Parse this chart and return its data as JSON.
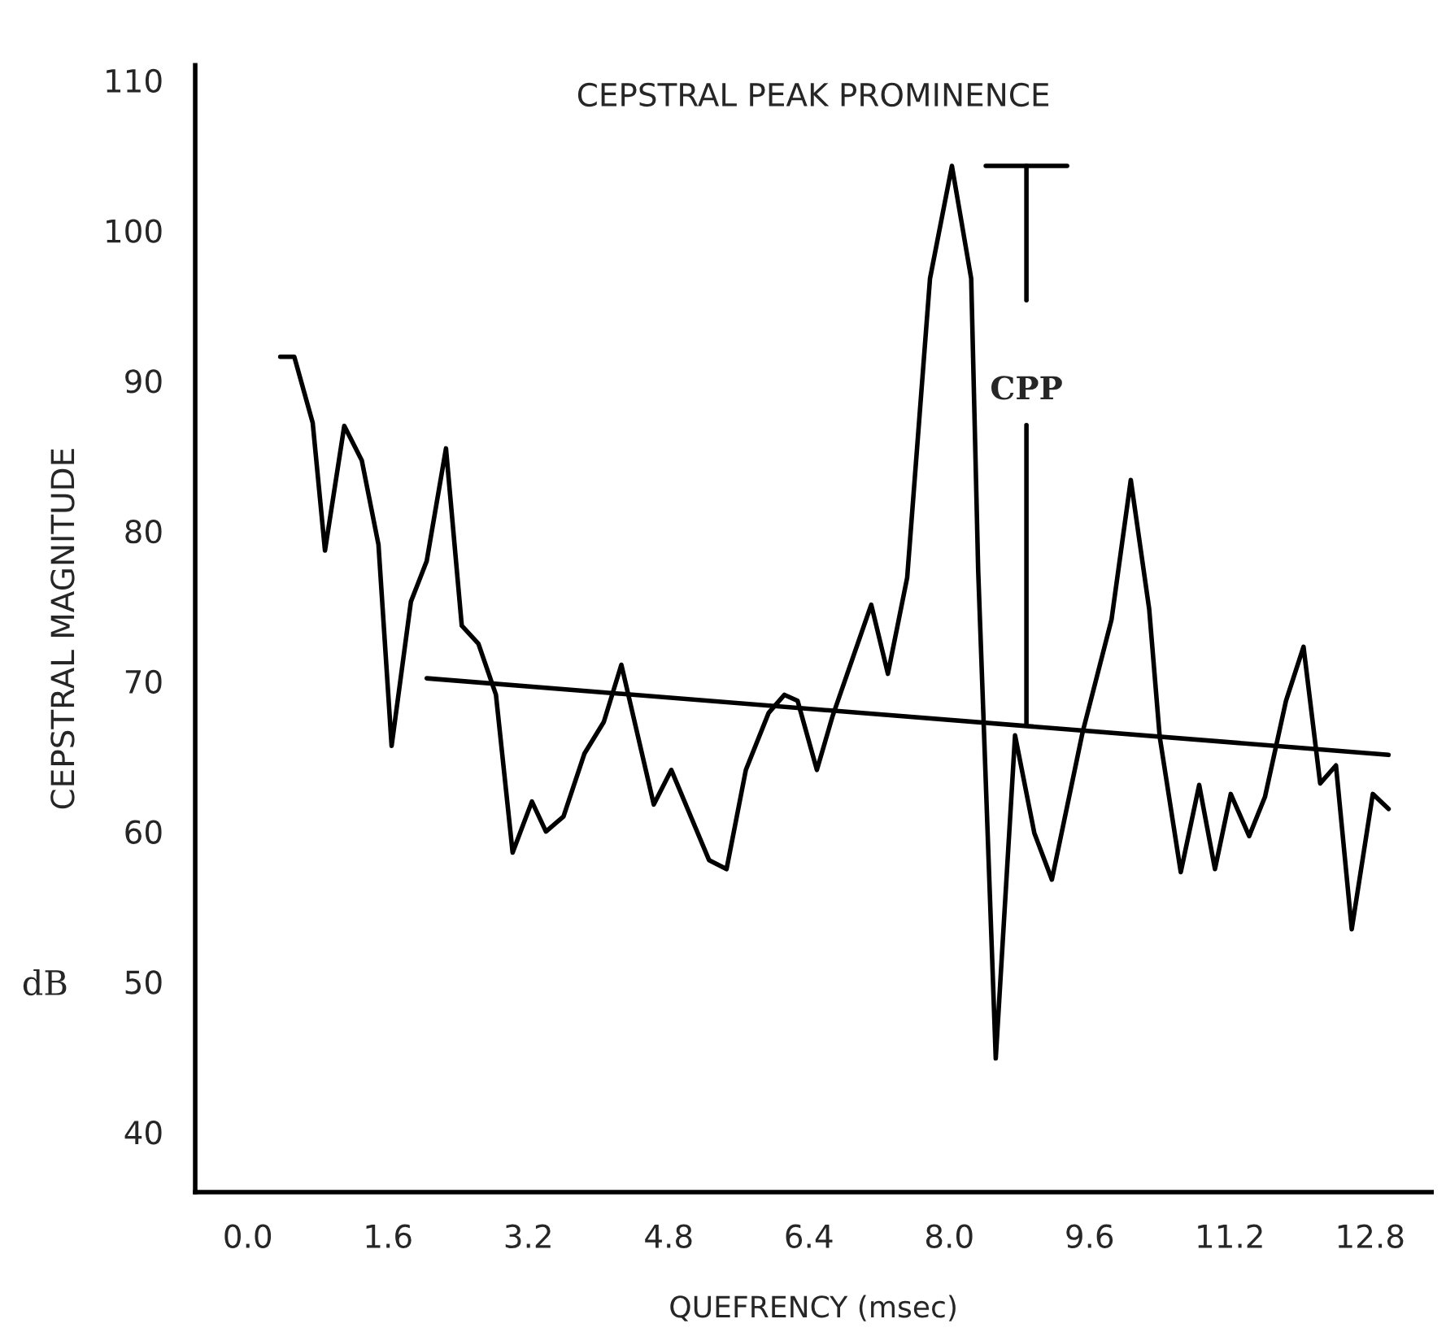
{
  "chart_data": {
    "type": "line",
    "title": "CEPSTRAL PEAK PROMINENCE",
    "xlabel": "QUEFRENCY (msec)",
    "ylabel": "CEPSTRAL MAGNITUDE",
    "xlim": [
      -0.6,
      13.5
    ],
    "ylim": [
      36,
      111
    ],
    "xticks": [
      {
        "value": 0,
        "label": "0.0"
      },
      1.6,
      3.2,
      4.8,
      6.4,
      {
        "value": 8,
        "label": "8.0"
      },
      9.6,
      11.2,
      12.8
    ],
    "yticks": [
      40,
      50,
      60,
      70,
      80,
      90,
      100,
      110
    ],
    "grid": false,
    "legend": false,
    "marker": "none",
    "line_style": "solid",
    "series": [
      {
        "color": "#000000",
        "x": [
          0.37,
          0.53,
          0.74,
          0.88,
          1.1,
          1.3,
          1.49,
          1.64,
          1.86,
          2.04,
          2.26,
          2.44,
          2.63,
          2.83,
          3.02,
          3.24,
          3.4,
          3.6,
          3.84,
          4.06,
          4.26,
          4.63,
          4.83,
          5.26,
          5.46,
          5.68,
          5.94,
          6.12,
          6.27,
          6.49,
          6.67,
          7.11,
          7.3,
          7.52,
          7.78,
          8.03,
          8.25,
          8.33,
          8.53,
          8.75,
          8.97,
          9.17,
          9.52,
          9.85,
          10.07,
          10.28,
          10.4,
          10.64,
          10.85,
          11.03,
          11.21,
          11.42,
          11.6,
          11.84,
          12.04,
          12.23,
          12.41,
          12.59,
          12.83,
          13.01
        ],
        "values": [
          91.6,
          91.6,
          87.2,
          78.7,
          87.0,
          84.7,
          79.1,
          65.7,
          75.3,
          78.0,
          85.5,
          73.7,
          72.5,
          69.1,
          58.6,
          62.0,
          60.0,
          61.0,
          65.2,
          67.3,
          71.1,
          61.8,
          64.1,
          58.1,
          57.5,
          64.1,
          67.9,
          69.1,
          68.7,
          64.1,
          67.7,
          75.1,
          70.5,
          76.9,
          96.8,
          104.3,
          96.8,
          77.3,
          44.9,
          66.4,
          59.9,
          56.8,
          66.6,
          74.1,
          83.4,
          74.8,
          66.3,
          57.3,
          63.1,
          57.5,
          62.5,
          59.7,
          62.3,
          68.7,
          72.3,
          63.2,
          64.4,
          53.5,
          62.5,
          61.5
        ]
      },
      {
        "color": "#000000",
        "x": [
          2.04,
          13.01
        ],
        "values": [
          70.2,
          65.1
        ]
      }
    ],
    "annotations": [
      {
        "text": "CPP",
        "x": 8.88,
        "y": 67.1
      },
      "dB"
    ]
  }
}
